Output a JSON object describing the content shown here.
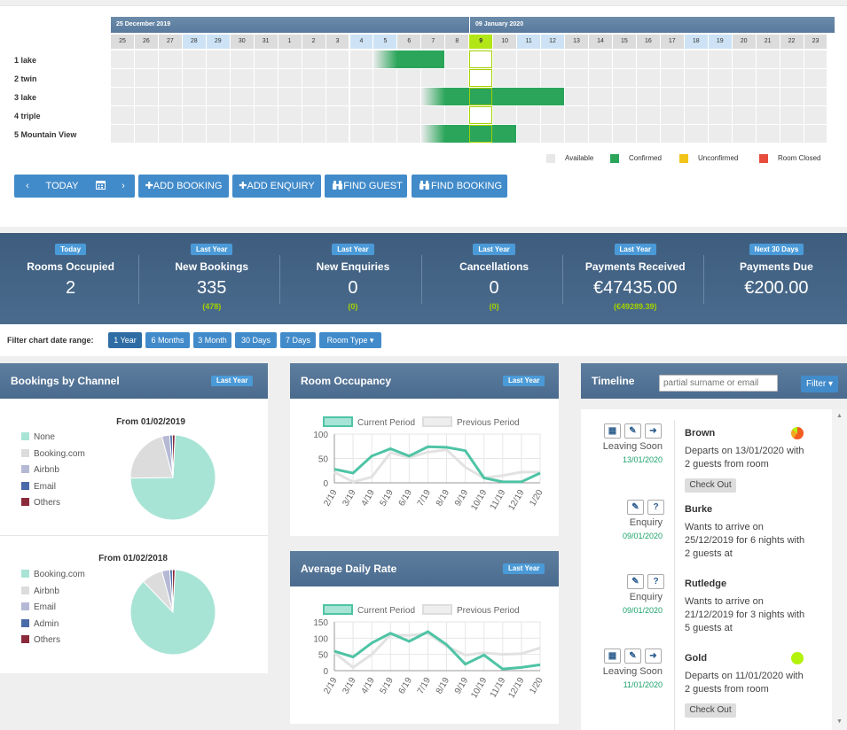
{
  "calendar": {
    "months": [
      "25 December 2019",
      "09 January 2020"
    ],
    "days": [
      "25",
      "26",
      "27",
      "28",
      "29",
      "30",
      "31",
      "1",
      "2",
      "3",
      "4",
      "5",
      "6",
      "7",
      "8",
      "9",
      "10",
      "11",
      "12",
      "13",
      "14",
      "15",
      "16",
      "17",
      "18",
      "19",
      "20",
      "21",
      "22",
      "23"
    ],
    "rooms": [
      "1 lake",
      "2 twin",
      "3 lake",
      "4 triple",
      "5 Mountain View"
    ],
    "legend": [
      {
        "label": "Available",
        "color": "#e8e8e8"
      },
      {
        "label": "Confirmed",
        "color": "#2aa55a"
      },
      {
        "label": "Unconfirmed",
        "color": "#f0c419"
      },
      {
        "label": "Room Closed",
        "color": "#e84c3d"
      }
    ]
  },
  "toolbar": {
    "prev": "‹",
    "today": "TODAY",
    "next": "›",
    "add_booking": "✚ADD BOOKING",
    "add_enquiry": "✚ADD ENQUIRY",
    "find_guest": "FIND GUEST",
    "find_booking": "FIND BOOKING"
  },
  "stats": [
    {
      "badge": "Today",
      "title": "Rooms Occupied",
      "value": "2",
      "sub": ""
    },
    {
      "badge": "Last Year",
      "title": "New Bookings",
      "value": "335",
      "sub": "(478)"
    },
    {
      "badge": "Last Year",
      "title": "New Enquiries",
      "value": "0",
      "sub": "(0)"
    },
    {
      "badge": "Last Year",
      "title": "Cancellations",
      "value": "0",
      "sub": "(0)"
    },
    {
      "badge": "Last Year",
      "title": "Payments Received",
      "value": "€47435.00",
      "sub": "(€49289.39)"
    },
    {
      "badge": "Next 30 Days",
      "title": "Payments Due",
      "value": "€200.00",
      "sub": ""
    }
  ],
  "filter": {
    "label": "Filter chart date range:",
    "options": [
      "1 Year",
      "6 Months",
      "3 Month",
      "30 Days",
      "7 Days",
      "Room Type ▾"
    ],
    "selected": "1 Year"
  },
  "bookings_by_channel": {
    "title": "Bookings by Channel",
    "badge": "Last Year",
    "pie1": {
      "title": "From 01/02/2019",
      "legend": [
        "None",
        "Booking.com",
        "Airbnb",
        "Email",
        "Others"
      ]
    },
    "pie2": {
      "title": "From 01/02/2018",
      "legend": [
        "Booking.com",
        "Airbnb",
        "Email",
        "Admin",
        "Others"
      ]
    },
    "colors": [
      "#a8e4d6",
      "#dcdcdc",
      "#b5b9d4",
      "#4a6aa8",
      "#8b2a3a"
    ]
  },
  "room_occupancy": {
    "title": "Room Occupancy",
    "badge": "Last Year",
    "legend_current": "Current Period",
    "legend_previous": "Previous Period"
  },
  "average_daily_rate": {
    "title": "Average Daily Rate",
    "badge": "Last Year",
    "legend_current": "Current Period",
    "legend_previous": "Previous Period"
  },
  "chart_data": [
    {
      "type": "pie",
      "title": "From 01/02/2019",
      "categories": [
        "None",
        "Booking.com",
        "Airbnb",
        "Email",
        "Others"
      ],
      "values": [
        74,
        21,
        3,
        1,
        1
      ]
    },
    {
      "type": "pie",
      "title": "From 01/02/2018",
      "categories": [
        "Booking.com",
        "Airbnb",
        "Email",
        "Admin",
        "Others"
      ],
      "values": [
        87,
        8,
        3,
        1,
        1
      ]
    },
    {
      "type": "line",
      "title": "Room Occupancy",
      "x": [
        "2/19",
        "3/19",
        "4/19",
        "5/19",
        "6/19",
        "7/19",
        "8/19",
        "9/19",
        "10/19",
        "11/19",
        "12/19",
        "1/20"
      ],
      "ylim": [
        0,
        100
      ],
      "yticks": [
        0,
        50,
        100
      ],
      "series": [
        {
          "name": "Current Period",
          "values": [
            28,
            20,
            55,
            70,
            55,
            74,
            73,
            66,
            10,
            2,
            2,
            20
          ]
        },
        {
          "name": "Previous Period",
          "values": [
            22,
            2,
            12,
            62,
            52,
            63,
            68,
            32,
            10,
            15,
            22,
            22
          ]
        }
      ]
    },
    {
      "type": "line",
      "title": "Average Daily Rate",
      "x": [
        "2/19",
        "3/19",
        "4/19",
        "5/19",
        "6/19",
        "7/19",
        "8/19",
        "9/19",
        "10/19",
        "11/19",
        "12/19",
        "1/20"
      ],
      "ylim": [
        0,
        150
      ],
      "yticks": [
        0,
        50,
        100,
        150
      ],
      "series": [
        {
          "name": "Current Period",
          "values": [
            60,
            42,
            85,
            115,
            90,
            120,
            80,
            20,
            48,
            5,
            10,
            18
          ]
        },
        {
          "name": "Previous Period",
          "values": [
            55,
            10,
            50,
            110,
            108,
            115,
            75,
            48,
            55,
            50,
            52,
            70
          ]
        }
      ]
    }
  ],
  "timeline": {
    "title": "Timeline",
    "search_placeholder": "partial surname or email",
    "filter": "Filter ▾",
    "items": [
      {
        "type": "Leaving Soon",
        "date": "13/01/2020",
        "name": "Brown",
        "lines": [
          "Departs on 13/01/2020 with",
          "2 guests from room"
        ],
        "button": "Check Out",
        "status_color": "#f25c1e"
      },
      {
        "type": "Enquiry",
        "date": "09/01/2020",
        "name": "Burke",
        "lines": [
          "Wants to arrive on",
          "25/12/2019 for 6 nights with",
          "2 guests at"
        ],
        "button": ""
      },
      {
        "type": "Enquiry",
        "date": "09/01/2020",
        "name": "Rutledge",
        "lines": [
          "Wants to arrive on",
          "21/12/2019 for 3 nights with",
          "5 guests at"
        ],
        "button": ""
      },
      {
        "type": "Leaving Soon",
        "date": "11/01/2020",
        "name": "Gold",
        "lines": [
          "Departs on 11/01/2020 with",
          "2 guests from room"
        ],
        "button": "Check Out",
        "status_color": "#b3f20a"
      }
    ]
  }
}
